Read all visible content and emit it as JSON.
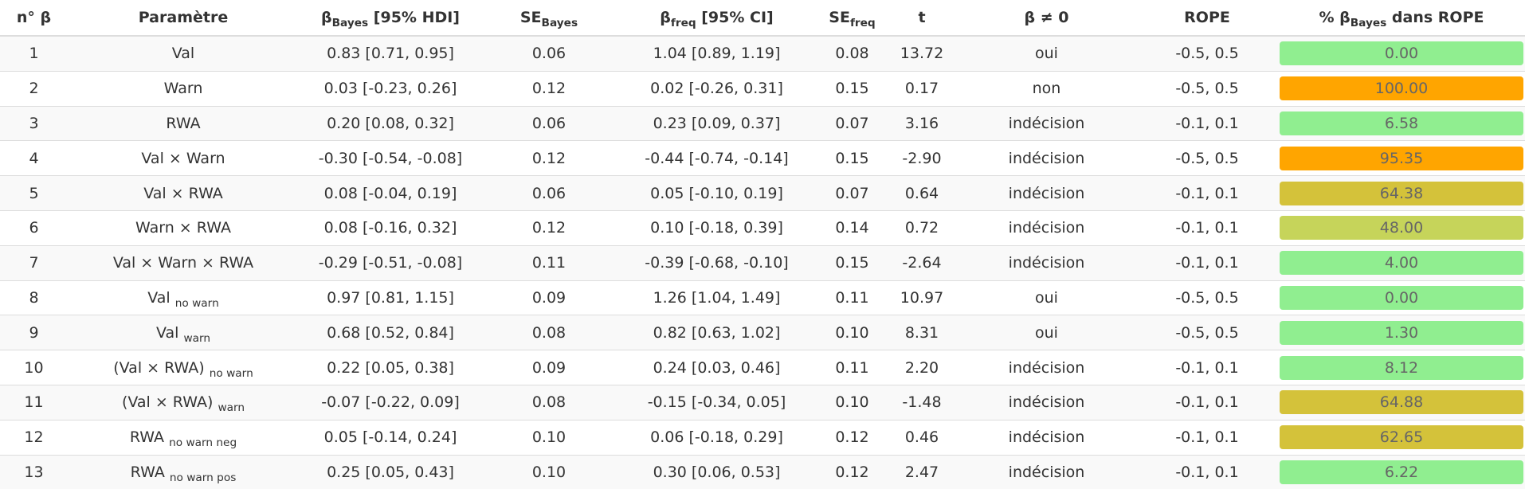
{
  "table": {
    "headers": {
      "n": {
        "text": "n° β"
      },
      "param": {
        "text": "Paramètre"
      },
      "bayes": {
        "pre": "β",
        "sub": "Bayes",
        "post": " [95% HDI]"
      },
      "se_bayes": {
        "pre": "SE",
        "sub": "Bayes"
      },
      "freq": {
        "pre": "β",
        "sub": "freq",
        "post": " [95% CI]"
      },
      "se_freq": {
        "pre": "SE",
        "sub": "freq"
      },
      "t": {
        "text": "t"
      },
      "ne0": {
        "text": "β ≠ 0"
      },
      "rope": {
        "text": "ROPE"
      },
      "pct": {
        "pre": "% β",
        "sub": "Bayes",
        "post": " dans ROPE"
      }
    },
    "rows": [
      {
        "n": "1",
        "param": {
          "main": "Val",
          "sub": ""
        },
        "bayes": "0.83 [0.71, 0.95]",
        "se_bayes": "0.06",
        "freq": "1.04 [0.89, 1.19]",
        "se_freq": "0.08",
        "t": "13.72",
        "ne0": "oui",
        "rope": "-0.5, 0.5",
        "pct": "0.00",
        "pct_color": "#90ee90"
      },
      {
        "n": "2",
        "param": {
          "main": "Warn",
          "sub": ""
        },
        "bayes": "0.03 [-0.23, 0.26]",
        "se_bayes": "0.12",
        "freq": "0.02 [-0.26, 0.31]",
        "se_freq": "0.15",
        "t": "0.17",
        "ne0": "non",
        "rope": "-0.5, 0.5",
        "pct": "100.00",
        "pct_color": "#ffa500"
      },
      {
        "n": "3",
        "param": {
          "main": "RWA",
          "sub": ""
        },
        "bayes": "0.20 [0.08, 0.32]",
        "se_bayes": "0.06",
        "freq": "0.23 [0.09, 0.37]",
        "se_freq": "0.07",
        "t": "3.16",
        "ne0": "indécision",
        "rope": "-0.1, 0.1",
        "pct": "6.58",
        "pct_color": "#90ee90"
      },
      {
        "n": "4",
        "param": {
          "main": "Val × Warn",
          "sub": ""
        },
        "bayes": "-0.30 [-0.54, -0.08]",
        "se_bayes": "0.12",
        "freq": "-0.44 [-0.74, -0.14]",
        "se_freq": "0.15",
        "t": "-2.90",
        "ne0": "indécision",
        "rope": "-0.5, 0.5",
        "pct": "95.35",
        "pct_color": "#ffa500"
      },
      {
        "n": "5",
        "param": {
          "main": "Val × RWA",
          "sub": ""
        },
        "bayes": "0.08 [-0.04, 0.19]",
        "se_bayes": "0.06",
        "freq": "0.05 [-0.10, 0.19]",
        "se_freq": "0.07",
        "t": "0.64",
        "ne0": "indécision",
        "rope": "-0.1, 0.1",
        "pct": "64.38",
        "pct_color": "#d4c23a"
      },
      {
        "n": "6",
        "param": {
          "main": "Warn × RWA",
          "sub": ""
        },
        "bayes": "0.08 [-0.16, 0.32]",
        "se_bayes": "0.12",
        "freq": "0.10 [-0.18, 0.39]",
        "se_freq": "0.14",
        "t": "0.72",
        "ne0": "indécision",
        "rope": "-0.1, 0.1",
        "pct": "48.00",
        "pct_color": "#c6d45a"
      },
      {
        "n": "7",
        "param": {
          "main": "Val × Warn × RWA",
          "sub": ""
        },
        "bayes": "-0.29 [-0.51, -0.08]",
        "se_bayes": "0.11",
        "freq": "-0.39 [-0.68, -0.10]",
        "se_freq": "0.15",
        "t": "-2.64",
        "ne0": "indécision",
        "rope": "-0.1, 0.1",
        "pct": "4.00",
        "pct_color": "#90ee90"
      },
      {
        "n": "8",
        "param": {
          "main": "Val ",
          "sub": "no warn"
        },
        "bayes": "0.97 [0.81, 1.15]",
        "se_bayes": "0.09",
        "freq": "1.26 [1.04, 1.49]",
        "se_freq": "0.11",
        "t": "10.97",
        "ne0": "oui",
        "rope": "-0.5, 0.5",
        "pct": "0.00",
        "pct_color": "#90ee90"
      },
      {
        "n": "9",
        "param": {
          "main": "Val ",
          "sub": "warn"
        },
        "bayes": "0.68 [0.52, 0.84]",
        "se_bayes": "0.08",
        "freq": "0.82 [0.63, 1.02]",
        "se_freq": "0.10",
        "t": "8.31",
        "ne0": "oui",
        "rope": "-0.5, 0.5",
        "pct": "1.30",
        "pct_color": "#90ee90"
      },
      {
        "n": "10",
        "param": {
          "main": "(Val × RWA) ",
          "sub": "no warn"
        },
        "bayes": "0.22 [0.05, 0.38]",
        "se_bayes": "0.09",
        "freq": "0.24 [0.03, 0.46]",
        "se_freq": "0.11",
        "t": "2.20",
        "ne0": "indécision",
        "rope": "-0.1, 0.1",
        "pct": "8.12",
        "pct_color": "#90ee90"
      },
      {
        "n": "11",
        "param": {
          "main": "(Val × RWA) ",
          "sub": "warn"
        },
        "bayes": "-0.07 [-0.22, 0.09]",
        "se_bayes": "0.08",
        "freq": "-0.15 [-0.34, 0.05]",
        "se_freq": "0.10",
        "t": "-1.48",
        "ne0": "indécision",
        "rope": "-0.1, 0.1",
        "pct": "64.88",
        "pct_color": "#d4c23a"
      },
      {
        "n": "12",
        "param": {
          "main": "RWA ",
          "sub": "no warn neg"
        },
        "bayes": "0.05 [-0.14, 0.24]",
        "se_bayes": "0.10",
        "freq": "0.06 [-0.18, 0.29]",
        "se_freq": "0.12",
        "t": "0.46",
        "ne0": "indécision",
        "rope": "-0.1, 0.1",
        "pct": "62.65",
        "pct_color": "#d4c23a"
      },
      {
        "n": "13",
        "param": {
          "main": "RWA ",
          "sub": "no warn pos"
        },
        "bayes": "0.25 [0.05, 0.43]",
        "se_bayes": "0.10",
        "freq": "0.30 [0.06, 0.53]",
        "se_freq": "0.12",
        "t": "2.47",
        "ne0": "indécision",
        "rope": "-0.1, 0.1",
        "pct": "6.22",
        "pct_color": "#90ee90"
      }
    ]
  }
}
